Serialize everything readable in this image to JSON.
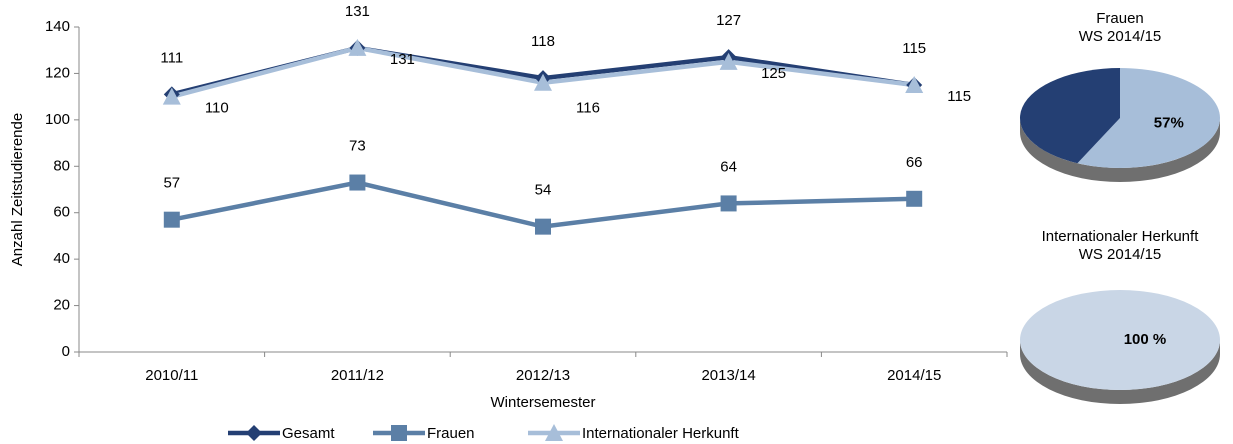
{
  "chart_data": [
    {
      "type": "line",
      "x_label": "Wintersemester",
      "y_label": "Anzahl Zeitstudierende",
      "categories": [
        "2010/11",
        "2011/12",
        "2012/13",
        "2013/14",
        "2014/15"
      ],
      "series": [
        {
          "name": "Gesamt",
          "color": "#243f73",
          "marker": "diamond",
          "values": [
            111,
            131,
            118,
            127,
            115
          ]
        },
        {
          "name": "Frauen",
          "color": "#5b7fa6",
          "marker": "square",
          "values": [
            57,
            73,
            54,
            64,
            66
          ]
        },
        {
          "name": "Internationaler Herkunft",
          "color": "#a7bed9",
          "marker": "triangle",
          "values": [
            110,
            131,
            116,
            125,
            115
          ]
        }
      ],
      "ylim": [
        0,
        140
      ],
      "yticks": [
        0,
        20,
        40,
        60,
        80,
        100,
        120,
        140
      ],
      "grid": false,
      "legend": "bottom"
    },
    {
      "type": "pie",
      "title": "Frauen\nWS 2014/15",
      "values": [
        57,
        43
      ],
      "value_labels": [
        "57%",
        null
      ],
      "colors": [
        "#a7bed9",
        "#243f73"
      ]
    },
    {
      "type": "pie",
      "title": "Internationaler Herkunft\nWS 2014/15",
      "values": [
        100
      ],
      "value_labels": [
        "100 %"
      ],
      "colors": [
        "#c9d6e6"
      ]
    }
  ]
}
